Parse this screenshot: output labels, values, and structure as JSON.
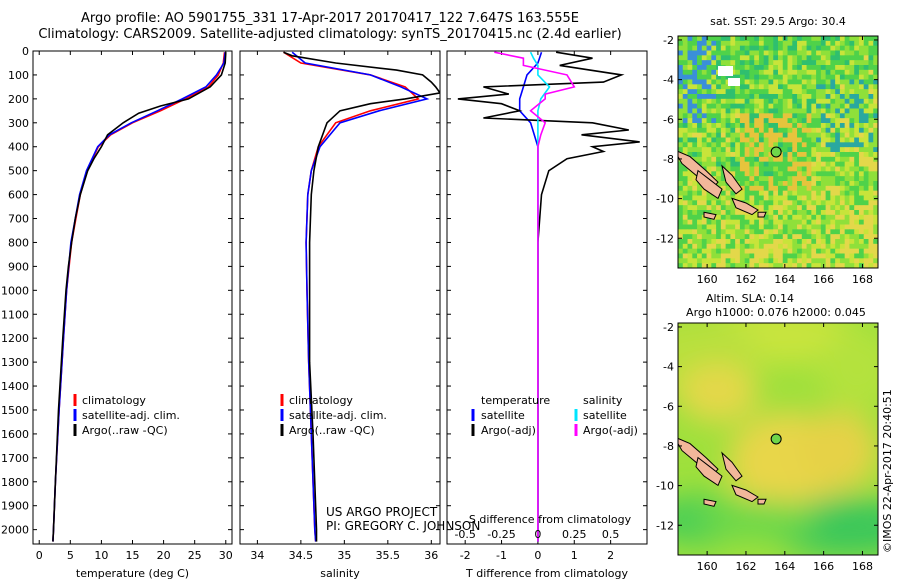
{
  "title_line1": "Argo profile: AO 5901755_331 17-Apr-2017 20170417_122 7.647S 163.555E",
  "title_line2": "Climatology: CARS2009. Satellite-adjusted climatology: synTS_20170415.nc (2.4d earlier)",
  "credit_line1": "US ARGO PROJECT",
  "credit_line2": "PI: GREGORY C. JOHNSON",
  "footer_stamp": "©IMOS 22-Apr-2017 20:40:51",
  "colors": {
    "climatology": "#ff0000",
    "satellite": "#0000ff",
    "argo": "#000000",
    "s_sat": "#00e5ff",
    "s_argo": "#ff00ff"
  },
  "chart_data": [
    {
      "type": "line",
      "id": "temperature",
      "xlabel": "temperature (deg C)",
      "ylabel": "",
      "xlim": [
        -1,
        31
      ],
      "ylim": [
        2060,
        0
      ],
      "xticks": [
        "0",
        "5",
        "10",
        "15",
        "20",
        "25",
        "30"
      ],
      "yticks": [
        "0",
        "100",
        "200",
        "300",
        "400",
        "500",
        "600",
        "700",
        "800",
        "900",
        "1000",
        "1100",
        "1200",
        "1300",
        "1400",
        "1500",
        "1600",
        "1700",
        "1800",
        "1900",
        "2000"
      ],
      "legend": [
        "climatology",
        "satellite-adj. clim.",
        "Argo(..raw -QC)"
      ],
      "series": [
        {
          "name": "climatology",
          "depth": [
            5,
            50,
            100,
            150,
            200,
            250,
            300,
            350,
            400,
            500,
            600,
            700,
            800,
            1000,
            1200,
            1500,
            1800,
            2000,
            2050
          ],
          "values": [
            29.8,
            29.6,
            28.8,
            27.2,
            23.5,
            19.5,
            15.0,
            11.5,
            9.5,
            7.7,
            6.6,
            5.9,
            5.2,
            4.4,
            3.9,
            3.2,
            2.6,
            2.3,
            2.2
          ]
        },
        {
          "name": "satellite-adj. clim.",
          "depth": [
            5,
            50,
            100,
            150,
            200,
            250,
            300,
            350,
            400,
            500,
            600,
            700,
            800,
            1000,
            1200,
            1500,
            1800,
            2000,
            2050
          ],
          "values": [
            29.9,
            29.7,
            28.5,
            26.8,
            23.0,
            19.0,
            14.8,
            11.3,
            9.4,
            7.6,
            6.5,
            5.8,
            5.1,
            4.4,
            3.9,
            3.2,
            2.6,
            2.3,
            2.2
          ]
        },
        {
          "name": "Argo(..raw -QC)",
          "depth": [
            5,
            50,
            100,
            150,
            200,
            230,
            260,
            300,
            350,
            400,
            450,
            500,
            600,
            700,
            800,
            900,
            1000,
            1200,
            1500,
            1800,
            2000,
            2050
          ],
          "values": [
            30.0,
            29.9,
            29.3,
            27.5,
            24.0,
            19.5,
            16.0,
            13.5,
            11.0,
            10.0,
            8.8,
            7.8,
            6.6,
            5.8,
            5.2,
            4.7,
            4.3,
            3.8,
            3.1,
            2.6,
            2.3,
            2.2
          ]
        }
      ]
    },
    {
      "type": "line",
      "id": "salinity",
      "xlabel": "salinity",
      "ylabel": "",
      "xlim": [
        33.8,
        36.1
      ],
      "ylim": [
        2060,
        0
      ],
      "xticks": [
        "34",
        "34.5",
        "35",
        "35.5",
        "36"
      ],
      "legend": [
        "climatology",
        "satellite-adj. clim.",
        "Argo(..raw -QC)"
      ],
      "series": [
        {
          "name": "climatology",
          "depth": [
            5,
            50,
            100,
            150,
            200,
            250,
            300,
            400,
            500,
            600,
            800,
            1000,
            1300,
            1600,
            2000,
            2050
          ],
          "values": [
            34.3,
            34.5,
            35.3,
            35.7,
            35.85,
            35.3,
            34.9,
            34.7,
            34.62,
            34.58,
            34.56,
            34.57,
            34.59,
            34.62,
            34.66,
            34.67
          ]
        },
        {
          "name": "satellite-adj. clim.",
          "depth": [
            5,
            50,
            100,
            150,
            200,
            250,
            300,
            400,
            500,
            600,
            800,
            1000,
            1300,
            1600,
            2000,
            2050
          ],
          "values": [
            34.4,
            34.55,
            35.3,
            35.65,
            35.95,
            35.4,
            34.95,
            34.72,
            34.62,
            34.58,
            34.56,
            34.57,
            34.59,
            34.62,
            34.66,
            34.67
          ]
        },
        {
          "name": "Argo(..raw -QC)",
          "depth": [
            5,
            20,
            50,
            80,
            100,
            130,
            150,
            175,
            200,
            220,
            250,
            300,
            400,
            500,
            600,
            800,
            1000,
            1300,
            1600,
            2000,
            2050
          ],
          "values": [
            34.3,
            34.4,
            34.9,
            35.6,
            35.9,
            36.0,
            36.05,
            36.1,
            35.7,
            35.3,
            34.95,
            34.8,
            34.7,
            34.65,
            34.62,
            34.6,
            34.6,
            34.6,
            34.64,
            34.68,
            34.68
          ]
        }
      ]
    },
    {
      "type": "line",
      "id": "difference",
      "xlabel": "T difference from climatology",
      "xlabel_top": "S difference from climatology",
      "xlim": [
        -2.5,
        3.0
      ],
      "ylim": [
        2060,
        0
      ],
      "xticks": [
        "-2",
        "-1",
        "0",
        "1",
        "2"
      ],
      "xticks_top": [
        "-0.5",
        "-0.25",
        "0",
        "0.25",
        "0.5"
      ],
      "legend_temperature": [
        "temperature",
        "satellite",
        "Argo(-adj)"
      ],
      "legend_salinity": [
        "salinity",
        "satellite",
        "Argo(-adj)"
      ],
      "series": [
        {
          "name": "satellite",
          "depth": [
            5,
            50,
            100,
            150,
            200,
            250,
            300,
            400,
            600,
            1000,
            1500,
            2050
          ],
          "values": [
            0.1,
            0.0,
            -0.3,
            -0.4,
            -0.5,
            -0.5,
            -0.2,
            0.0,
            0.0,
            0.0,
            0.0,
            0.0
          ]
        },
        {
          "name": "Argo(-adj)",
          "depth": [
            5,
            30,
            60,
            100,
            130,
            150,
            180,
            200,
            220,
            250,
            280,
            300,
            330,
            350,
            380,
            400,
            420,
            450,
            500,
            600,
            800,
            1000,
            1500,
            2050
          ],
          "values": [
            0.5,
            1.5,
            0.6,
            2.3,
            1.8,
            -1.5,
            -0.8,
            -2.2,
            -1.0,
            -0.5,
            -1.5,
            1.5,
            2.5,
            1.2,
            2.8,
            1.5,
            1.8,
            0.8,
            0.3,
            0.1,
            0.0,
            0.0,
            0.0,
            0.0
          ]
        },
        {
          "name": "S satellite",
          "depth": [
            5,
            30,
            60,
            100,
            150,
            200,
            250,
            300,
            400,
            600,
            1000,
            2050
          ],
          "values": [
            -0.05,
            -0.03,
            0.0,
            0.0,
            0.08,
            0.02,
            0.0,
            0.0,
            0.0,
            0.0,
            0.0,
            0.0
          ]
        },
        {
          "name": "S Argo(-adj)",
          "depth": [
            5,
            30,
            60,
            100,
            150,
            180,
            200,
            250,
            300,
            350,
            400,
            600,
            1000,
            2050
          ],
          "values": [
            -0.3,
            -0.1,
            -0.1,
            0.2,
            0.25,
            0.05,
            0.05,
            -0.05,
            0.05,
            0.02,
            0.0,
            0.0,
            0.0,
            0.0
          ]
        }
      ]
    },
    {
      "type": "heatmap",
      "id": "sst_map",
      "title": "sat. SST: 29.5 Argo: 30.4",
      "xlim": [
        158.5,
        168.8
      ],
      "ylim": [
        -13.5,
        -1.8
      ],
      "xticks": [
        "160",
        "162",
        "164",
        "166",
        "168"
      ],
      "yticks": [
        "-2",
        "-4",
        "-6",
        "-8",
        "-10",
        "-12"
      ],
      "argo_position": [
        163.555,
        -7.647
      ]
    },
    {
      "type": "heatmap",
      "id": "sla_map",
      "title_line1": "Altim. SLA: 0.14",
      "title_line2": "Argo h1000: 0.076 h2000: 0.045",
      "xlim": [
        158.5,
        168.8
      ],
      "ylim": [
        -13.5,
        -1.8
      ],
      "xticks": [
        "160",
        "162",
        "164",
        "166",
        "168"
      ],
      "yticks": [
        "-2",
        "-4",
        "-6",
        "-8",
        "-10",
        "-12"
      ],
      "argo_position": [
        163.555,
        -7.647
      ]
    }
  ]
}
